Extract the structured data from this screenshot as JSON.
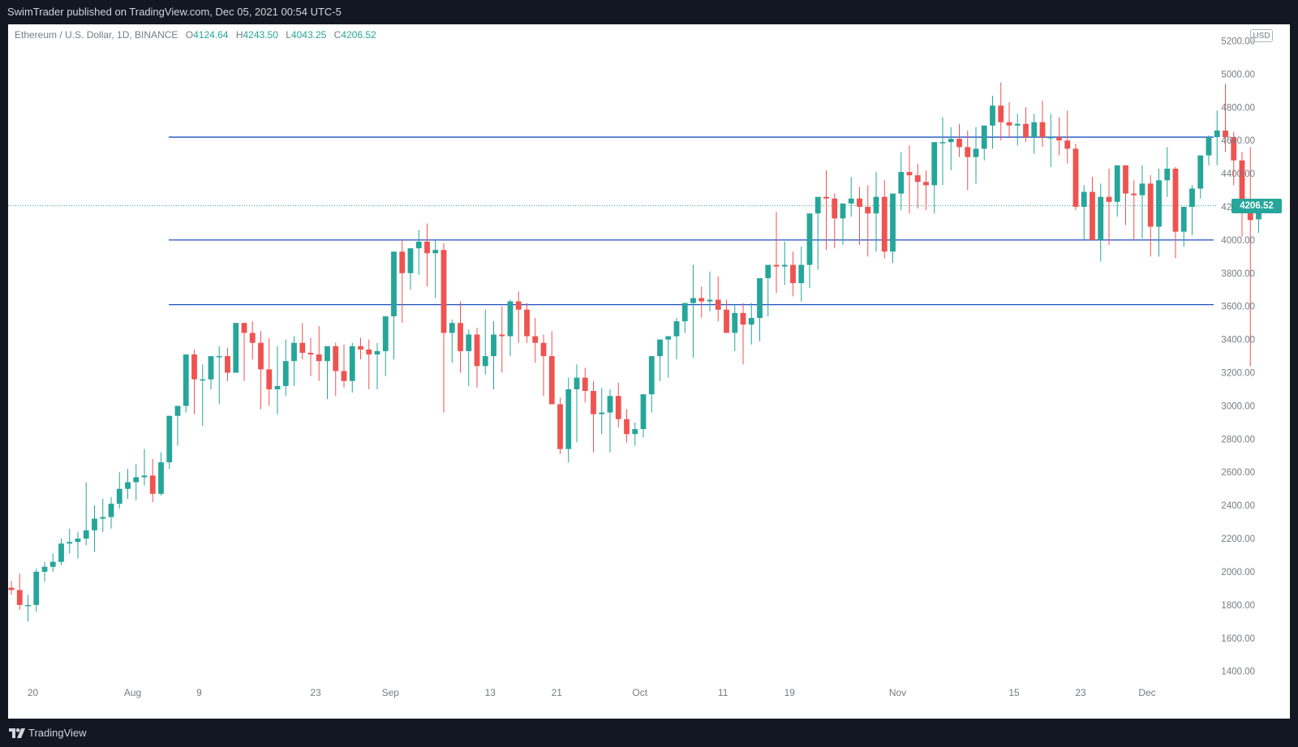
{
  "header": {
    "publisher_text": "SwimTrader published on TradingView.com, Dec 05, 2021 00:54 UTC-5"
  },
  "legend": {
    "symbol": "Ethereum / U.S. Dollar, 1D, BINANCE",
    "open_key": "O",
    "open": "4124.64",
    "high_key": "H",
    "high": "4243.50",
    "low_key": "L",
    "low": "4043.25",
    "close_key": "C",
    "close": "4206.52"
  },
  "currency_button": "USD",
  "last_price_label": "4206.52",
  "footer": {
    "brand": "TradingView"
  },
  "colors": {
    "up": "#26a69a",
    "down": "#ef5350",
    "level_line": "#1e4fc2",
    "price_line": "#26a69a"
  },
  "chart_data": {
    "type": "candlestick",
    "ylim": [
      1330,
      5300
    ],
    "y_ticks": [
      "5200.00",
      "5000.00",
      "4800.00",
      "4600.00",
      "4400.00",
      "4200.00",
      "4000.00",
      "3800.00",
      "3600.00",
      "3400.00",
      "3200.00",
      "3000.00",
      "2800.00",
      "2600.00",
      "2400.00",
      "2200.00",
      "2000.00",
      "1800.00",
      "1600.00",
      "1400.00"
    ],
    "x_ticks": [
      {
        "label": "20",
        "index": 2
      },
      {
        "label": "Aug",
        "index": 14
      },
      {
        "label": "9",
        "index": 22
      },
      {
        "label": "23",
        "index": 36
      },
      {
        "label": "Sep",
        "index": 45
      },
      {
        "label": "13",
        "index": 57
      },
      {
        "label": "21",
        "index": 65
      },
      {
        "label": "Oct",
        "index": 75
      },
      {
        "label": "11",
        "index": 85
      },
      {
        "label": "19",
        "index": 93
      },
      {
        "label": "Nov",
        "index": 106
      },
      {
        "label": "15",
        "index": 120
      },
      {
        "label": "23",
        "index": 128
      },
      {
        "label": "Dec",
        "index": 136
      }
    ],
    "horizontal_levels": [
      4620,
      4000,
      3610
    ],
    "last_price": 4206.52,
    "series": [
      [
        1904,
        1945,
        1860,
        1890
      ],
      [
        1890,
        1990,
        1770,
        1800
      ],
      [
        1800,
        1860,
        1700,
        1800
      ],
      [
        1800,
        2020,
        1760,
        2000
      ],
      [
        2000,
        2060,
        1940,
        2030
      ],
      [
        2030,
        2110,
        2000,
        2060
      ],
      [
        2060,
        2200,
        2040,
        2170
      ],
      [
        2170,
        2260,
        2110,
        2180
      ],
      [
        2180,
        2240,
        2080,
        2200
      ],
      [
        2200,
        2540,
        2160,
        2250
      ],
      [
        2250,
        2400,
        2120,
        2320
      ],
      [
        2320,
        2440,
        2240,
        2330
      ],
      [
        2330,
        2450,
        2260,
        2410
      ],
      [
        2410,
        2600,
        2380,
        2500
      ],
      [
        2500,
        2620,
        2440,
        2540
      ],
      [
        2540,
        2650,
        2430,
        2570
      ],
      [
        2570,
        2740,
        2520,
        2580
      ],
      [
        2580,
        2680,
        2420,
        2470
      ],
      [
        2470,
        2720,
        2460,
        2660
      ],
      [
        2660,
        2860,
        2620,
        2940
      ],
      [
        2940,
        3000,
        2760,
        3000
      ],
      [
        3000,
        3230,
        2960,
        3310
      ],
      [
        3310,
        3340,
        2950,
        3160
      ],
      [
        3160,
        3250,
        2880,
        3160
      ],
      [
        3160,
        3300,
        3100,
        3300
      ],
      [
        3300,
        3360,
        3010,
        3300
      ],
      [
        3300,
        3350,
        3150,
        3200
      ],
      [
        3200,
        3430,
        3200,
        3500
      ],
      [
        3500,
        3500,
        3150,
        3440
      ],
      [
        3440,
        3510,
        3280,
        3380
      ],
      [
        3380,
        3450,
        2980,
        3220
      ],
      [
        3220,
        3410,
        3000,
        3100
      ],
      [
        3100,
        3360,
        2950,
        3120
      ],
      [
        3120,
        3400,
        3060,
        3270
      ],
      [
        3270,
        3420,
        3120,
        3380
      ],
      [
        3380,
        3500,
        3280,
        3320
      ],
      [
        3320,
        3410,
        3180,
        3310
      ],
      [
        3310,
        3480,
        3150,
        3270
      ],
      [
        3270,
        3350,
        3040,
        3360
      ],
      [
        3360,
        3380,
        3060,
        3210
      ],
      [
        3210,
        3370,
        3110,
        3150
      ],
      [
        3150,
        3380,
        3080,
        3360
      ],
      [
        3360,
        3410,
        3280,
        3340
      ],
      [
        3340,
        3400,
        3100,
        3310
      ],
      [
        3310,
        3380,
        3100,
        3330
      ],
      [
        3330,
        3450,
        3180,
        3540
      ],
      [
        3540,
        3900,
        3280,
        3930
      ],
      [
        3930,
        4000,
        3500,
        3800
      ],
      [
        3800,
        3850,
        3700,
        3950
      ],
      [
        3950,
        4060,
        3790,
        3990
      ],
      [
        3990,
        4100,
        3720,
        3920
      ],
      [
        3920,
        4000,
        3650,
        3940
      ],
      [
        3940,
        3980,
        2960,
        3440
      ],
      [
        3440,
        3520,
        3260,
        3500
      ],
      [
        3500,
        3630,
        3200,
        3330
      ],
      [
        3330,
        3460,
        3120,
        3430
      ],
      [
        3430,
        3470,
        3110,
        3240
      ],
      [
        3240,
        3580,
        3190,
        3300
      ],
      [
        3300,
        3510,
        3100,
        3430
      ],
      [
        3430,
        3600,
        3200,
        3420
      ],
      [
        3420,
        3640,
        3300,
        3630
      ],
      [
        3630,
        3690,
        3380,
        3580
      ],
      [
        3580,
        3620,
        3380,
        3420
      ],
      [
        3420,
        3530,
        3260,
        3380
      ],
      [
        3380,
        3430,
        3060,
        3300
      ],
      [
        3300,
        3450,
        3010,
        3010
      ],
      [
        3010,
        3050,
        2710,
        2740
      ],
      [
        2740,
        3170,
        2660,
        3100
      ],
      [
        3100,
        3250,
        2780,
        3170
      ],
      [
        3170,
        3230,
        3020,
        3090
      ],
      [
        3090,
        3150,
        2720,
        2950
      ],
      [
        2950,
        3110,
        2830,
        2960
      ],
      [
        2960,
        3100,
        2720,
        3060
      ],
      [
        3060,
        3140,
        2870,
        2920
      ],
      [
        2920,
        2980,
        2780,
        2830
      ],
      [
        2830,
        2900,
        2760,
        2860
      ],
      [
        2860,
        3020,
        2810,
        3070
      ],
      [
        3070,
        3240,
        2960,
        3300
      ],
      [
        3300,
        3390,
        3150,
        3400
      ],
      [
        3400,
        3420,
        3170,
        3420
      ],
      [
        3420,
        3530,
        3280,
        3510
      ],
      [
        3510,
        3600,
        3440,
        3620
      ],
      [
        3620,
        3850,
        3290,
        3650
      ],
      [
        3650,
        3720,
        3530,
        3630
      ],
      [
        3630,
        3810,
        3570,
        3640
      ],
      [
        3640,
        3780,
        3510,
        3580
      ],
      [
        3580,
        3640,
        3440,
        3440
      ],
      [
        3440,
        3610,
        3330,
        3560
      ],
      [
        3560,
        3620,
        3250,
        3490
      ],
      [
        3490,
        3620,
        3370,
        3530
      ],
      [
        3530,
        3680,
        3390,
        3770
      ],
      [
        3770,
        3820,
        3540,
        3850
      ],
      [
        3850,
        4170,
        3680,
        3840
      ],
      [
        3840,
        3990,
        3730,
        3850
      ],
      [
        3850,
        3930,
        3660,
        3740
      ],
      [
        3740,
        3960,
        3630,
        3850
      ],
      [
        3850,
        4000,
        3710,
        4160
      ],
      [
        4160,
        4230,
        3820,
        4260
      ],
      [
        4260,
        4420,
        3940,
        4250
      ],
      [
        4250,
        4280,
        3950,
        4130
      ],
      [
        4130,
        4190,
        3970,
        4220
      ],
      [
        4220,
        4380,
        4140,
        4250
      ],
      [
        4250,
        4320,
        3970,
        4200
      ],
      [
        4200,
        4330,
        3900,
        4160
      ],
      [
        4160,
        4410,
        3930,
        4260
      ],
      [
        4260,
        4360,
        3890,
        3930
      ],
      [
        3930,
        4170,
        3860,
        4280
      ],
      [
        4280,
        4530,
        4180,
        4410
      ],
      [
        4410,
        4570,
        4160,
        4390
      ],
      [
        4390,
        4460,
        4190,
        4350
      ],
      [
        4350,
        4420,
        4180,
        4330
      ],
      [
        4330,
        4450,
        4160,
        4590
      ],
      [
        4590,
        4740,
        4330,
        4590
      ],
      [
        4590,
        4680,
        4420,
        4610
      ],
      [
        4610,
        4700,
        4500,
        4560
      ],
      [
        4560,
        4660,
        4300,
        4500
      ],
      [
        4500,
        4680,
        4340,
        4550
      ],
      [
        4550,
        4640,
        4480,
        4690
      ],
      [
        4690,
        4870,
        4550,
        4810
      ],
      [
        4810,
        4950,
        4600,
        4710
      ],
      [
        4710,
        4830,
        4620,
        4690
      ],
      [
        4690,
        4760,
        4570,
        4700
      ],
      [
        4700,
        4800,
        4590,
        4620
      ],
      [
        4620,
        4760,
        4520,
        4710
      ],
      [
        4710,
        4840,
        4560,
        4620
      ],
      [
        4620,
        4760,
        4440,
        4620
      ],
      [
        4620,
        4740,
        4510,
        4600
      ],
      [
        4600,
        4780,
        4460,
        4550
      ],
      [
        4550,
        4580,
        4180,
        4200
      ],
      [
        4200,
        4330,
        4000,
        4290
      ],
      [
        4290,
        4380,
        4000,
        4000
      ],
      [
        4000,
        4340,
        3870,
        4260
      ],
      [
        4260,
        4430,
        3970,
        4230
      ],
      [
        4230,
        4430,
        4140,
        4450
      ],
      [
        4450,
        4430,
        4090,
        4280
      ],
      [
        4280,
        4360,
        4000,
        4270
      ],
      [
        4270,
        4450,
        4010,
        4340
      ],
      [
        4340,
        4390,
        3900,
        4080
      ],
      [
        4080,
        4430,
        3900,
        4360
      ],
      [
        4360,
        4560,
        4260,
        4430
      ],
      [
        4430,
        4440,
        3890,
        4050
      ],
      [
        4050,
        4170,
        3960,
        4200
      ],
      [
        4200,
        4330,
        4030,
        4310
      ],
      [
        4310,
        4430,
        4250,
        4510
      ],
      [
        4510,
        4630,
        4450,
        4620
      ],
      [
        4620,
        4780,
        4450,
        4660
      ],
      [
        4660,
        4940,
        4530,
        4620
      ],
      [
        4620,
        4650,
        4330,
        4480
      ],
      [
        4480,
        4530,
        4020,
        4220
      ],
      [
        4220,
        4560,
        3240,
        4120
      ],
      [
        4124.64,
        4243.5,
        4043.25,
        4206.52
      ]
    ]
  }
}
